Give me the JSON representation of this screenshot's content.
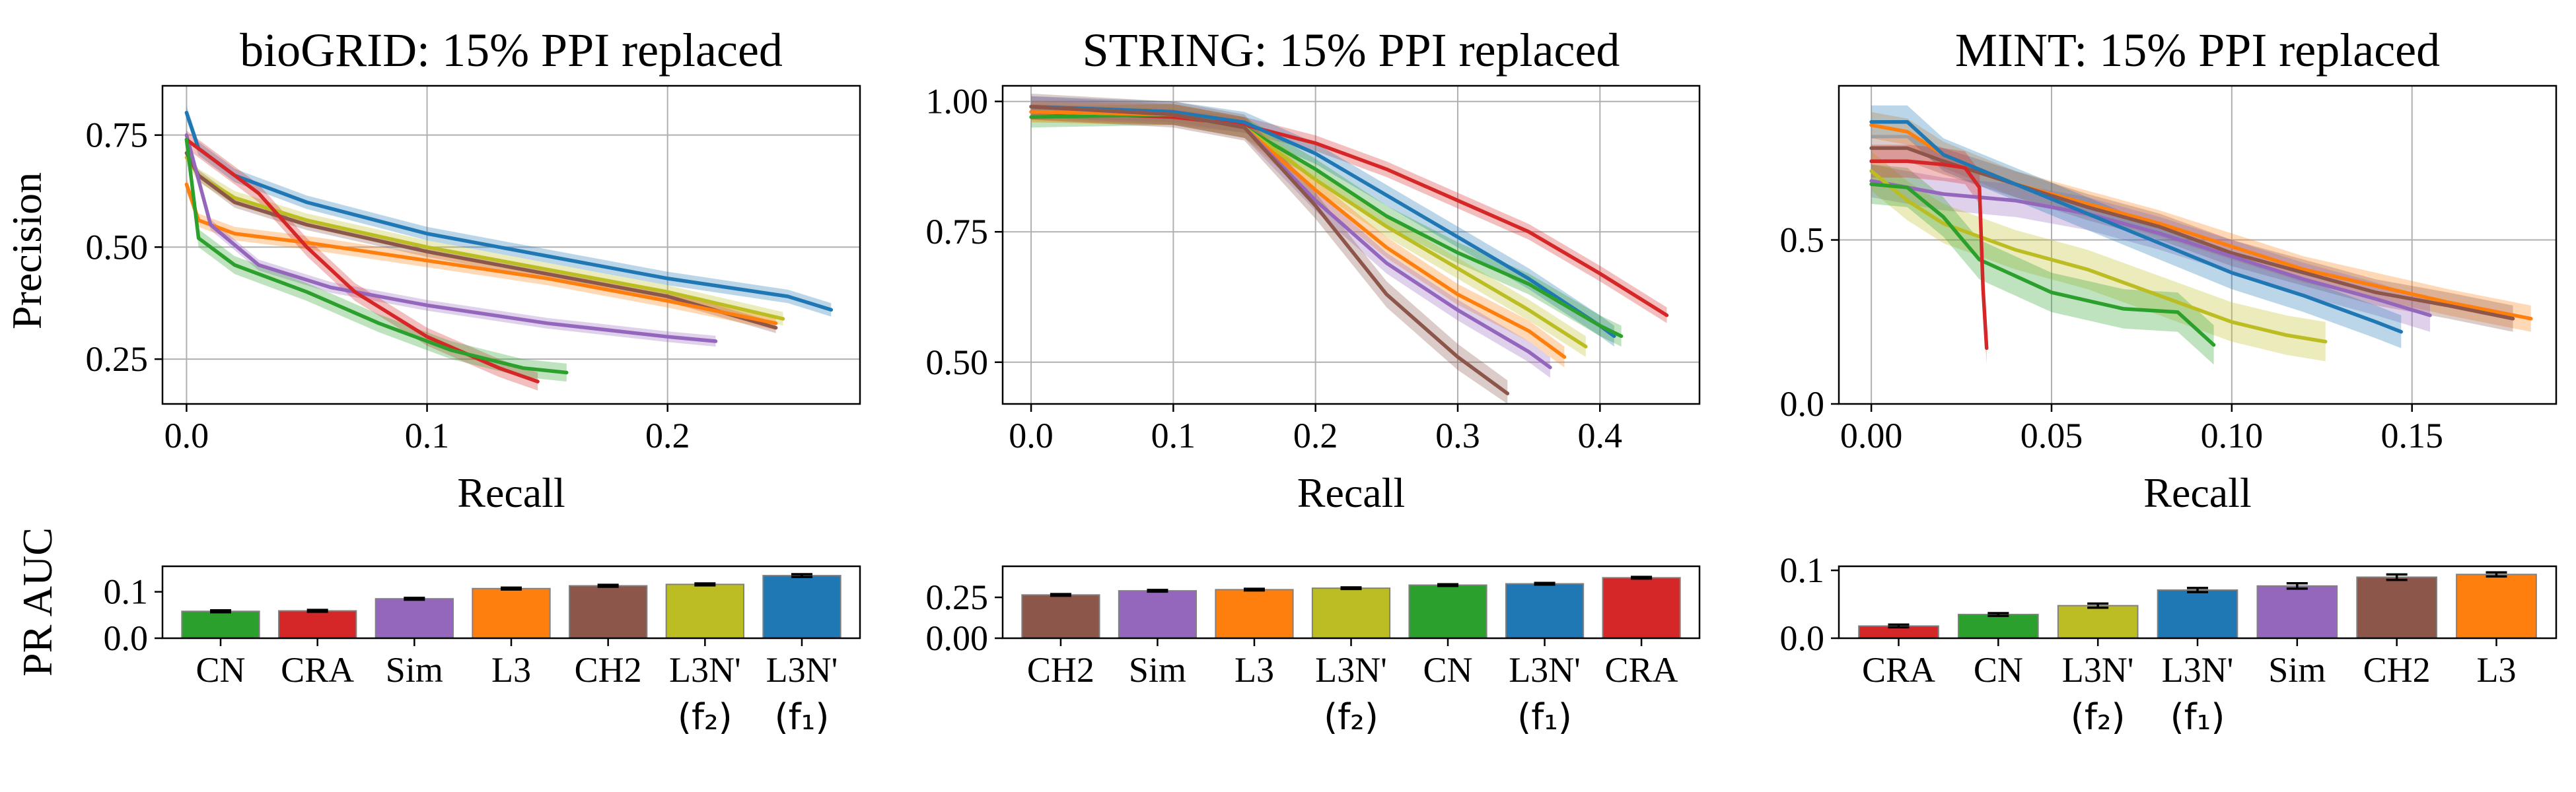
{
  "colors": {
    "CN": "#2ca02c",
    "CRA": "#d62728",
    "Sim": "#9467bd",
    "L3": "#ff7f0e",
    "CH2": "#8c564b",
    "L3N2": "#bcbd22",
    "L3N1": "#1f77b4"
  },
  "labels": {
    "CN": "CN",
    "CRA": "CRA",
    "Sim": "Sim",
    "L3": "L3",
    "CH2": "CH2",
    "L3N2": "L3N'",
    "L3N1": "L3N'",
    "f2": "(f₂)",
    "f1": "(f₁)"
  },
  "shared": {
    "pr_xlabel": "Recall",
    "pr_ylabel": "Precision",
    "auc_ylabel": "PR AUC"
  },
  "chart_data": [
    {
      "type": "line",
      "title": "bioGRID: 15% PPI replaced",
      "xlabel": "Recall",
      "ylabel": "Precision",
      "xlim": [
        -0.01,
        0.28
      ],
      "ylim": [
        0.15,
        0.86
      ],
      "xticks": [
        0.0,
        0.1,
        0.2
      ],
      "xticklabels": [
        "0.0",
        "0.1",
        "0.2"
      ],
      "yticks": [
        0.25,
        0.5,
        0.75
      ],
      "yticklabels": [
        "0.25",
        "0.50",
        "0.75"
      ],
      "grid": true,
      "series": [
        {
          "key": "L3N1",
          "band": 0.015,
          "points": [
            [
              0,
              0.8
            ],
            [
              0.005,
              0.72
            ],
            [
              0.02,
              0.66
            ],
            [
              0.05,
              0.6
            ],
            [
              0.1,
              0.53
            ],
            [
              0.15,
              0.48
            ],
            [
              0.2,
              0.43
            ],
            [
              0.25,
              0.39
            ],
            [
              0.268,
              0.36
            ]
          ]
        },
        {
          "key": "L3N2",
          "band": 0.015,
          "points": [
            [
              0,
              0.7
            ],
            [
              0.005,
              0.66
            ],
            [
              0.02,
              0.61
            ],
            [
              0.05,
              0.56
            ],
            [
              0.1,
              0.5
            ],
            [
              0.15,
              0.45
            ],
            [
              0.2,
              0.4
            ],
            [
              0.248,
              0.34
            ]
          ]
        },
        {
          "key": "CH2",
          "band": 0.012,
          "points": [
            [
              0,
              0.71
            ],
            [
              0.005,
              0.66
            ],
            [
              0.02,
              0.6
            ],
            [
              0.05,
              0.55
            ],
            [
              0.1,
              0.49
            ],
            [
              0.15,
              0.44
            ],
            [
              0.2,
              0.39
            ],
            [
              0.245,
              0.32
            ]
          ]
        },
        {
          "key": "L3",
          "band": 0.015,
          "points": [
            [
              0,
              0.64
            ],
            [
              0.005,
              0.56
            ],
            [
              0.02,
              0.53
            ],
            [
              0.05,
              0.51
            ],
            [
              0.1,
              0.47
            ],
            [
              0.15,
              0.43
            ],
            [
              0.2,
              0.38
            ],
            [
              0.245,
              0.33
            ]
          ]
        },
        {
          "key": "Sim",
          "band": 0.012,
          "points": [
            [
              0,
              0.75
            ],
            [
              0.01,
              0.55
            ],
            [
              0.03,
              0.46
            ],
            [
              0.06,
              0.41
            ],
            [
              0.1,
              0.37
            ],
            [
              0.15,
              0.33
            ],
            [
              0.2,
              0.3
            ],
            [
              0.22,
              0.29
            ]
          ]
        },
        {
          "key": "CRA",
          "band": 0.02,
          "points": [
            [
              0,
              0.74
            ],
            [
              0.01,
              0.7
            ],
            [
              0.03,
              0.62
            ],
            [
              0.05,
              0.5
            ],
            [
              0.07,
              0.4
            ],
            [
              0.1,
              0.3
            ],
            [
              0.13,
              0.23
            ],
            [
              0.146,
              0.2
            ]
          ]
        },
        {
          "key": "CN",
          "band": 0.02,
          "points": [
            [
              0,
              0.74
            ],
            [
              0.005,
              0.52
            ],
            [
              0.02,
              0.46
            ],
            [
              0.05,
              0.4
            ],
            [
              0.08,
              0.33
            ],
            [
              0.11,
              0.27
            ],
            [
              0.14,
              0.23
            ],
            [
              0.158,
              0.22
            ]
          ]
        }
      ]
    },
    {
      "type": "line",
      "title": "STRING: 15% PPI replaced",
      "xlabel": "Recall",
      "ylabel": "",
      "xlim": [
        -0.02,
        0.47
      ],
      "ylim": [
        0.42,
        1.03
      ],
      "xticks": [
        0.0,
        0.1,
        0.2,
        0.3,
        0.4
      ],
      "xticklabels": [
        "0.0",
        "0.1",
        "0.2",
        "0.3",
        "0.4"
      ],
      "yticks": [
        0.5,
        0.75,
        1.0
      ],
      "yticklabels": [
        "0.50",
        "0.75",
        "1.00"
      ],
      "grid": true,
      "series": [
        {
          "key": "CRA",
          "band": 0.015,
          "points": [
            [
              0,
              0.98
            ],
            [
              0.1,
              0.97
            ],
            [
              0.15,
              0.955
            ],
            [
              0.2,
              0.92
            ],
            [
              0.25,
              0.87
            ],
            [
              0.3,
              0.81
            ],
            [
              0.35,
              0.75
            ],
            [
              0.4,
              0.67
            ],
            [
              0.447,
              0.59
            ]
          ]
        },
        {
          "key": "L3N1",
          "band": 0.02,
          "points": [
            [
              0,
              0.99
            ],
            [
              0.1,
              0.98
            ],
            [
              0.15,
              0.96
            ],
            [
              0.2,
              0.9
            ],
            [
              0.25,
              0.82
            ],
            [
              0.3,
              0.74
            ],
            [
              0.35,
              0.66
            ],
            [
              0.4,
              0.57
            ],
            [
              0.41,
              0.55
            ]
          ]
        },
        {
          "key": "CN",
          "band": 0.02,
          "points": [
            [
              0,
              0.97
            ],
            [
              0.1,
              0.975
            ],
            [
              0.15,
              0.95
            ],
            [
              0.2,
              0.87
            ],
            [
              0.25,
              0.78
            ],
            [
              0.3,
              0.71
            ],
            [
              0.35,
              0.65
            ],
            [
              0.4,
              0.57
            ],
            [
              0.415,
              0.55
            ]
          ]
        },
        {
          "key": "L3N2",
          "band": 0.02,
          "points": [
            [
              0,
              0.98
            ],
            [
              0.1,
              0.975
            ],
            [
              0.15,
              0.95
            ],
            [
              0.2,
              0.85
            ],
            [
              0.25,
              0.76
            ],
            [
              0.3,
              0.68
            ],
            [
              0.35,
              0.6
            ],
            [
              0.39,
              0.53
            ]
          ]
        },
        {
          "key": "L3",
          "band": 0.02,
          "points": [
            [
              0,
              0.98
            ],
            [
              0.1,
              0.975
            ],
            [
              0.15,
              0.95
            ],
            [
              0.2,
              0.83
            ],
            [
              0.25,
              0.72
            ],
            [
              0.3,
              0.63
            ],
            [
              0.35,
              0.56
            ],
            [
              0.375,
              0.51
            ]
          ]
        },
        {
          "key": "Sim",
          "band": 0.02,
          "points": [
            [
              0,
              0.99
            ],
            [
              0.1,
              0.975
            ],
            [
              0.15,
              0.95
            ],
            [
              0.2,
              0.81
            ],
            [
              0.25,
              0.69
            ],
            [
              0.3,
              0.6
            ],
            [
              0.35,
              0.52
            ],
            [
              0.365,
              0.49
            ]
          ]
        },
        {
          "key": "CH2",
          "band": 0.025,
          "points": [
            [
              0,
              0.99
            ],
            [
              0.1,
              0.975
            ],
            [
              0.15,
              0.95
            ],
            [
              0.2,
              0.8
            ],
            [
              0.25,
              0.63
            ],
            [
              0.3,
              0.51
            ],
            [
              0.335,
              0.44
            ]
          ]
        }
      ]
    },
    {
      "type": "line",
      "title": "MINT: 15% PPI replaced",
      "xlabel": "Recall",
      "ylabel": "",
      "xlim": [
        -0.009,
        0.19
      ],
      "ylim": [
        0.0,
        0.97
      ],
      "xticks": [
        0.0,
        0.05,
        0.1,
        0.15
      ],
      "xticklabels": [
        "0.00",
        "0.05",
        "0.10",
        "0.15"
      ],
      "yticks": [
        0.0,
        0.5
      ],
      "yticklabels": [
        "0.0",
        "0.5"
      ],
      "grid": true,
      "series": [
        {
          "key": "L3",
          "band": 0.04,
          "points": [
            [
              0,
              0.85
            ],
            [
              0.01,
              0.83
            ],
            [
              0.02,
              0.76
            ],
            [
              0.04,
              0.67
            ],
            [
              0.06,
              0.61
            ],
            [
              0.08,
              0.55
            ],
            [
              0.1,
              0.48
            ],
            [
              0.12,
              0.41
            ],
            [
              0.14,
              0.36
            ],
            [
              0.16,
              0.31
            ],
            [
              0.183,
              0.26
            ]
          ]
        },
        {
          "key": "CH2",
          "band": 0.04,
          "points": [
            [
              0,
              0.78
            ],
            [
              0.01,
              0.78
            ],
            [
              0.02,
              0.74
            ],
            [
              0.04,
              0.67
            ],
            [
              0.06,
              0.6
            ],
            [
              0.08,
              0.54
            ],
            [
              0.1,
              0.46
            ],
            [
              0.12,
              0.4
            ],
            [
              0.14,
              0.34
            ],
            [
              0.16,
              0.3
            ],
            [
              0.178,
              0.26
            ]
          ]
        },
        {
          "key": "Sim",
          "band": 0.05,
          "points": [
            [
              0,
              0.68
            ],
            [
              0.01,
              0.66
            ],
            [
              0.02,
              0.64
            ],
            [
              0.04,
              0.62
            ],
            [
              0.06,
              0.58
            ],
            [
              0.08,
              0.52
            ],
            [
              0.1,
              0.45
            ],
            [
              0.12,
              0.38
            ],
            [
              0.14,
              0.32
            ],
            [
              0.155,
              0.27
            ]
          ]
        },
        {
          "key": "L3N1",
          "band": 0.05,
          "points": [
            [
              0,
              0.86
            ],
            [
              0.01,
              0.86
            ],
            [
              0.02,
              0.76
            ],
            [
              0.04,
              0.67
            ],
            [
              0.06,
              0.58
            ],
            [
              0.08,
              0.49
            ],
            [
              0.1,
              0.4
            ],
            [
              0.12,
              0.33
            ],
            [
              0.14,
              0.25
            ],
            [
              0.147,
              0.22
            ]
          ]
        },
        {
          "key": "L3N2",
          "band": 0.06,
          "points": [
            [
              0,
              0.71
            ],
            [
              0.01,
              0.62
            ],
            [
              0.02,
              0.55
            ],
            [
              0.04,
              0.47
            ],
            [
              0.06,
              0.41
            ],
            [
              0.08,
              0.33
            ],
            [
              0.1,
              0.25
            ],
            [
              0.115,
              0.21
            ],
            [
              0.126,
              0.19
            ]
          ]
        },
        {
          "key": "CN",
          "band": 0.06,
          "points": [
            [
              0,
              0.67
            ],
            [
              0.01,
              0.66
            ],
            [
              0.02,
              0.57
            ],
            [
              0.03,
              0.44
            ],
            [
              0.05,
              0.34
            ],
            [
              0.07,
              0.29
            ],
            [
              0.085,
              0.28
            ],
            [
              0.095,
              0.18
            ]
          ]
        },
        {
          "key": "CRA",
          "band": 0.05,
          "points": [
            [
              0,
              0.74
            ],
            [
              0.01,
              0.74
            ],
            [
              0.02,
              0.73
            ],
            [
              0.026,
              0.72
            ],
            [
              0.03,
              0.66
            ],
            [
              0.031,
              0.35
            ],
            [
              0.032,
              0.17
            ]
          ]
        }
      ]
    },
    {
      "type": "bar",
      "title": "",
      "ylabel": "PR AUC",
      "ylim": [
        0.0,
        0.155
      ],
      "yticks": [
        0.0,
        0.1
      ],
      "yticklabels": [
        "0.0",
        "0.1"
      ],
      "categories": [
        "CN",
        "CRA",
        "Sim",
        "L3",
        "CH2",
        "L3N2",
        "L3N1"
      ],
      "values": [
        0.058,
        0.059,
        0.085,
        0.107,
        0.113,
        0.116,
        0.135
      ],
      "errors": [
        0.002,
        0.002,
        0.002,
        0.002,
        0.002,
        0.002,
        0.003
      ]
    },
    {
      "type": "bar",
      "title": "",
      "ylabel": "",
      "ylim": [
        0.0,
        0.44
      ],
      "yticks": [
        0.0,
        0.25
      ],
      "yticklabels": [
        "0.00",
        "0.25"
      ],
      "categories": [
        "CH2",
        "Sim",
        "L3",
        "L3N2",
        "CN",
        "L3N1",
        "CRA"
      ],
      "values": [
        0.265,
        0.29,
        0.297,
        0.306,
        0.325,
        0.333,
        0.37
      ],
      "errors": [
        0.005,
        0.005,
        0.005,
        0.005,
        0.005,
        0.005,
        0.005
      ]
    },
    {
      "type": "bar",
      "title": "",
      "ylabel": "",
      "ylim": [
        0.0,
        0.106
      ],
      "yticks": [
        0.0,
        0.1
      ],
      "yticklabels": [
        "0.0",
        "0.1"
      ],
      "categories": [
        "CRA",
        "CN",
        "L3N2",
        "L3N1",
        "Sim",
        "CH2",
        "L3"
      ],
      "values": [
        0.018,
        0.035,
        0.048,
        0.071,
        0.077,
        0.09,
        0.094
      ],
      "errors": [
        0.002,
        0.002,
        0.003,
        0.003,
        0.004,
        0.004,
        0.003
      ]
    }
  ]
}
